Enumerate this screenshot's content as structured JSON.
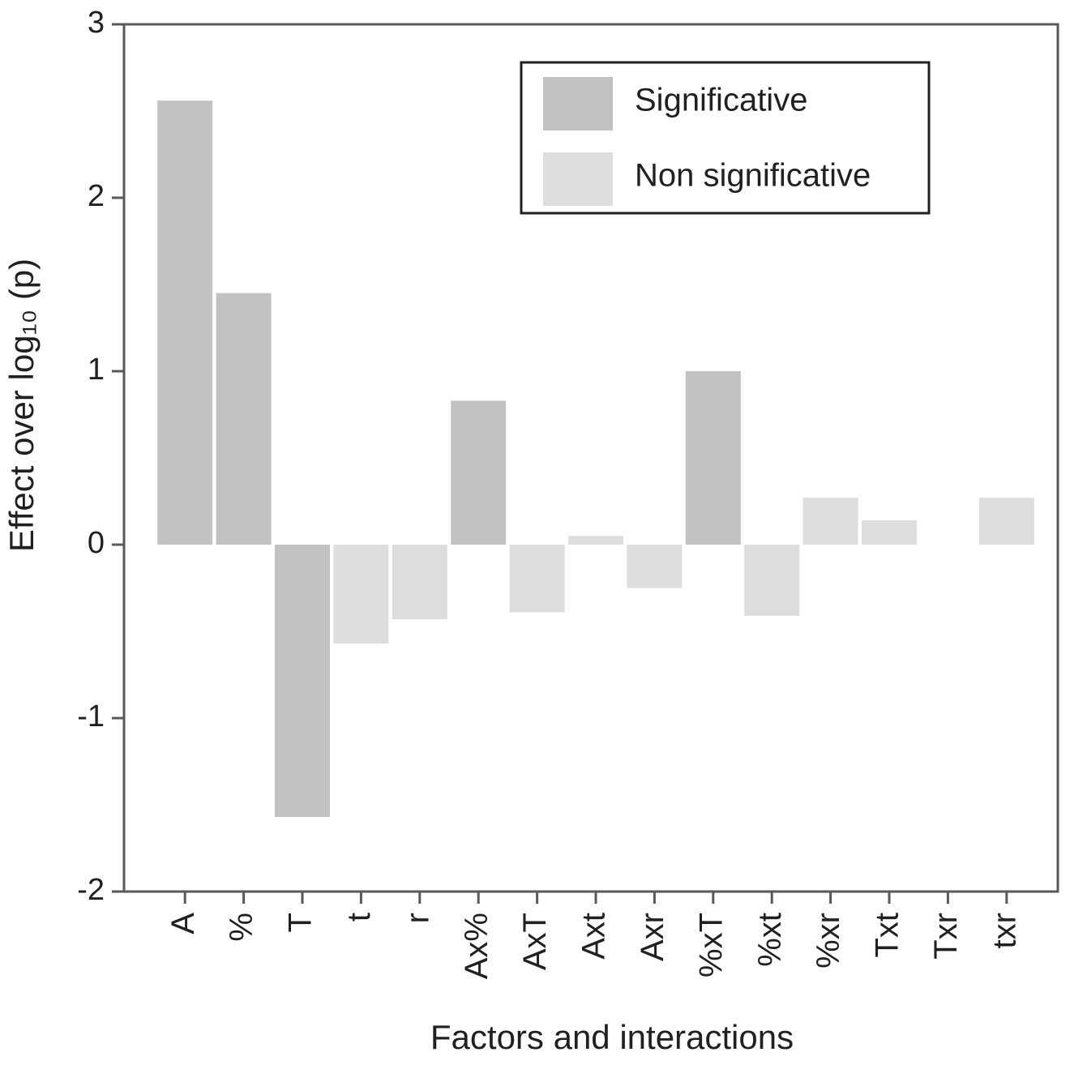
{
  "chart_data": {
    "type": "bar",
    "x_label": "Factors and interactions",
    "y_label": "Effect over log₁₀ (p)",
    "categories": [
      "A",
      "%",
      "T",
      "t",
      "r",
      "Ax%",
      "AxT",
      "Axt",
      "Axr",
      "%xT",
      "%xt",
      "%xr",
      "Txt",
      "Txr",
      "txr"
    ],
    "series": [
      {
        "name": "Significative",
        "color": "#c1c2c4",
        "values": [
          2.56,
          1.45,
          -1.57,
          null,
          null,
          0.83,
          null,
          null,
          null,
          1.0,
          null,
          null,
          null,
          null,
          null
        ]
      },
      {
        "name": "Non significative",
        "color": "#dcddde",
        "values": [
          null,
          null,
          null,
          -0.57,
          -0.43,
          null,
          -0.39,
          0.05,
          -0.25,
          null,
          -0.41,
          0.27,
          0.14,
          0,
          0.27
        ]
      }
    ],
    "ylim": [
      -2,
      3
    ],
    "yticks": [
      -2,
      -1,
      0,
      1,
      2,
      3
    ],
    "legend": "upper right"
  }
}
